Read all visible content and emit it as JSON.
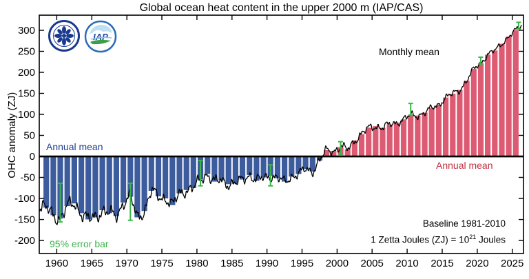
{
  "title": "Global ocean heat content in the upper 2000 m (IAP/CAS)",
  "axes": {
    "y_label": "OHC anomaly (ZJ)",
    "y_ticks": [
      300,
      250,
      200,
      150,
      100,
      50,
      0,
      -50,
      -100,
      -150,
      -200
    ],
    "x_ticks": [
      1960,
      1965,
      1970,
      1975,
      1980,
      1985,
      1990,
      1995,
      2000,
      2005,
      2010,
      2015,
      2020,
      2025
    ],
    "x_range": [
      1957.5,
      2026.6
    ],
    "y_range": [
      -231,
      336
    ],
    "grid": false
  },
  "annotations": {
    "annual_mean_left": "Annual mean",
    "annual_mean_right": "Annual mean",
    "monthly_mean": "Monthly mean",
    "error_bar": "95% error bar",
    "baseline": "Baseline 1981-2010",
    "zetta_prefix": "1 Zetta Joules (ZJ) = 10",
    "zetta_exp": "21",
    "zetta_suffix": " Joules"
  },
  "logos": {
    "cas_label": "cas-academy-logo",
    "iap_text": "IAP"
  },
  "colors": {
    "bar_negative": "#3d5c9e",
    "bar_positive": "#dc5a72",
    "monthly_line": "#000000",
    "zero_line": "#000000",
    "error_bar": "#3cb54a",
    "annual_text_blue": "#1f3d8f",
    "annual_text_red": "#c03040",
    "axis": "#000000",
    "logo_blue": "#1a3a8f",
    "logo_light_blue": "#bfe0f2",
    "logo_green": "#3a9e4a"
  },
  "chart_data": {
    "type": "bar",
    "title": "Global ocean heat content in the upper 2000 m (IAP/CAS)",
    "xlabel": "",
    "ylabel": "OHC anomaly (ZJ)",
    "ylim": [
      -231,
      336
    ],
    "xlim": [
      1957.5,
      2026.6
    ],
    "legend_position": "inline-annotations",
    "units": "ZJ (1 Zetta Joules = 1e21 Joules), anomaly relative to 1981-2010 baseline",
    "series": [
      {
        "name": "Annual mean",
        "type": "bar",
        "years": [
          1958,
          1959,
          1960,
          1961,
          1962,
          1963,
          1964,
          1965,
          1966,
          1967,
          1968,
          1969,
          1970,
          1971,
          1972,
          1973,
          1974,
          1975,
          1976,
          1977,
          1978,
          1979,
          1980,
          1981,
          1982,
          1983,
          1984,
          1985,
          1986,
          1987,
          1988,
          1989,
          1990,
          1991,
          1992,
          1993,
          1994,
          1995,
          1996,
          1997,
          1998,
          1999,
          2000,
          2001,
          2002,
          2003,
          2004,
          2005,
          2006,
          2007,
          2008,
          2009,
          2010,
          2011,
          2012,
          2013,
          2014,
          2015,
          2016,
          2017,
          2018,
          2019,
          2020,
          2021,
          2022,
          2023,
          2024,
          2025
        ],
        "values": [
          -122,
          -140,
          -148,
          -118,
          -112,
          -135,
          -150,
          -145,
          -128,
          -135,
          -142,
          -110,
          -96,
          -145,
          -130,
          -82,
          -95,
          -100,
          -116,
          -88,
          -80,
          -75,
          -55,
          -42,
          -60,
          -57,
          -66,
          -64,
          -55,
          -44,
          -58,
          -50,
          -46,
          -52,
          -60,
          -48,
          -42,
          -30,
          -36,
          -10,
          15,
          13,
          22,
          17,
          38,
          53,
          68,
          72,
          68,
          76,
          80,
          88,
          98,
          97,
          104,
          115,
          123,
          140,
          149,
          158,
          180,
          208,
          222,
          242,
          252,
          268,
          285,
          300
        ]
      },
      {
        "name": "Monthly mean",
        "type": "line",
        "description": "Monthly values oscillate around the annual means; variability (noise) shrinks from about ±25 ZJ in 1958 to about ±10 ZJ after 2005; line extends past the last annual bar to early 2026 peaking near 320 ZJ.",
        "start": 1957.55,
        "end": 2026.3,
        "start_amplitude": 21,
        "amplitude_decay_per_year": 0.2,
        "min_amplitude": 8
      },
      {
        "name": "95% error bar",
        "type": "errorbar",
        "points": [
          {
            "year": 1960.5,
            "center": -110,
            "half_width": 46
          },
          {
            "year": 1970.5,
            "center": -108,
            "half_width": 44
          },
          {
            "year": 1980.5,
            "center": -40,
            "half_width": 30
          },
          {
            "year": 1990.5,
            "center": -45,
            "half_width": 25
          },
          {
            "year": 2000.5,
            "center": 19,
            "half_width": 16
          },
          {
            "year": 2010.5,
            "center": 112,
            "half_width": 14
          },
          {
            "year": 2020.5,
            "center": 228,
            "half_width": 8
          },
          {
            "year": 2025.9,
            "center": 311,
            "half_width": 8
          }
        ]
      }
    ]
  }
}
